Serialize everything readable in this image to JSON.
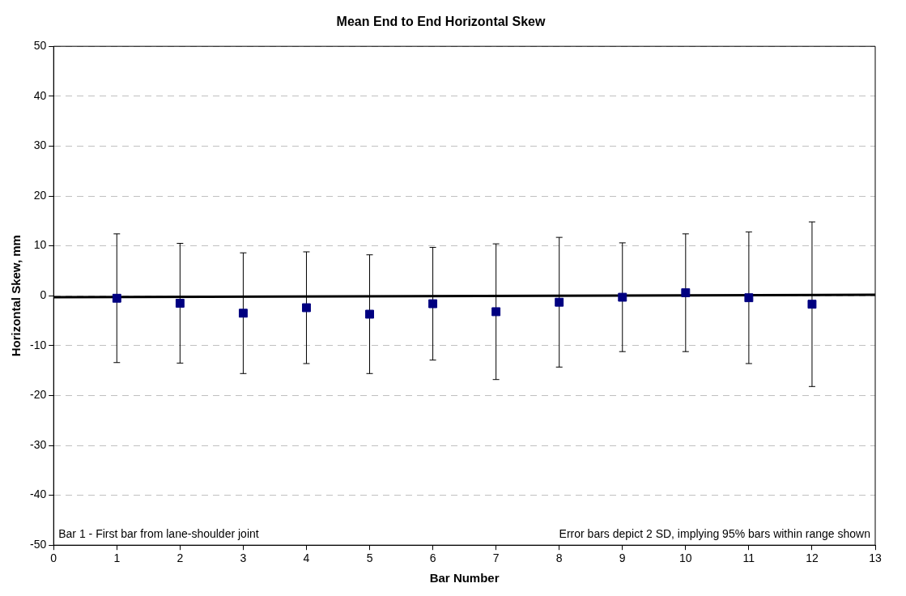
{
  "chart_data": {
    "type": "scatter",
    "title": "Mean End to End Horizontal Skew",
    "xlabel": "Bar Number",
    "ylabel": "Horizontal Skew, mm",
    "xlim": [
      0,
      13
    ],
    "xticks": [
      0,
      1,
      2,
      3,
      4,
      5,
      6,
      7,
      8,
      9,
      10,
      11,
      12,
      13
    ],
    "ylim": [
      -50,
      50
    ],
    "yticks": [
      -50,
      -40,
      -30,
      -20,
      -10,
      0,
      10,
      20,
      30,
      40,
      50
    ],
    "grid": "y",
    "legend": false,
    "marker": "square",
    "series": [
      {
        "color": "#000080",
        "x": [
          1,
          2,
          3,
          4,
          5,
          6,
          7,
          8,
          9,
          10,
          11,
          12
        ],
        "values": [
          -0.5,
          -1.5,
          -3.5,
          -2.4,
          -3.7,
          -1.6,
          -3.2,
          -1.3,
          -0.3,
          0.6,
          -0.4,
          -1.7
        ],
        "errors": [
          12.9,
          12,
          12.1,
          11.2,
          11.9,
          11.3,
          13.6,
          13,
          10.9,
          11.8,
          13.2,
          16.5
        ]
      },
      {
        "type": "line",
        "color": "#000000",
        "marker": "none",
        "x": [
          0,
          13
        ],
        "values": [
          -0.3,
          0.2
        ]
      }
    ],
    "annotations": [
      "Bar 1 - First bar from lane-shoulder joint",
      "Error bars depict 2 SD, implying 95% bars within range shown"
    ]
  }
}
